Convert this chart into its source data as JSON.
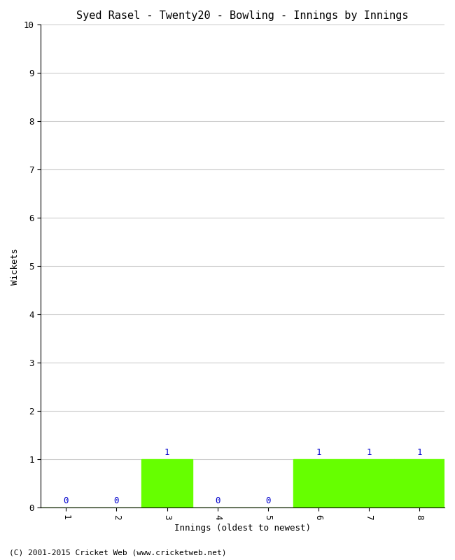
{
  "title": "Syed Rasel - Twenty20 - Bowling - Innings by Innings",
  "xlabel": "Innings (oldest to newest)",
  "ylabel": "Wickets",
  "categories": [
    "1",
    "2",
    "3",
    "4",
    "5",
    "6",
    "7",
    "8"
  ],
  "values": [
    0,
    0,
    1,
    0,
    0,
    1,
    1,
    1
  ],
  "bar_color": "#66ff00",
  "ylim": [
    0,
    10
  ],
  "yticks": [
    0,
    1,
    2,
    3,
    4,
    5,
    6,
    7,
    8,
    9,
    10
  ],
  "background_color": "#ffffff",
  "plot_bg_color": "#ffffff",
  "grid_color": "#cccccc",
  "title_fontsize": 11,
  "label_fontsize": 9,
  "tick_fontsize": 9,
  "annotation_color": "#0000cc",
  "footer": "(C) 2001-2015 Cricket Web (www.cricketweb.net)"
}
